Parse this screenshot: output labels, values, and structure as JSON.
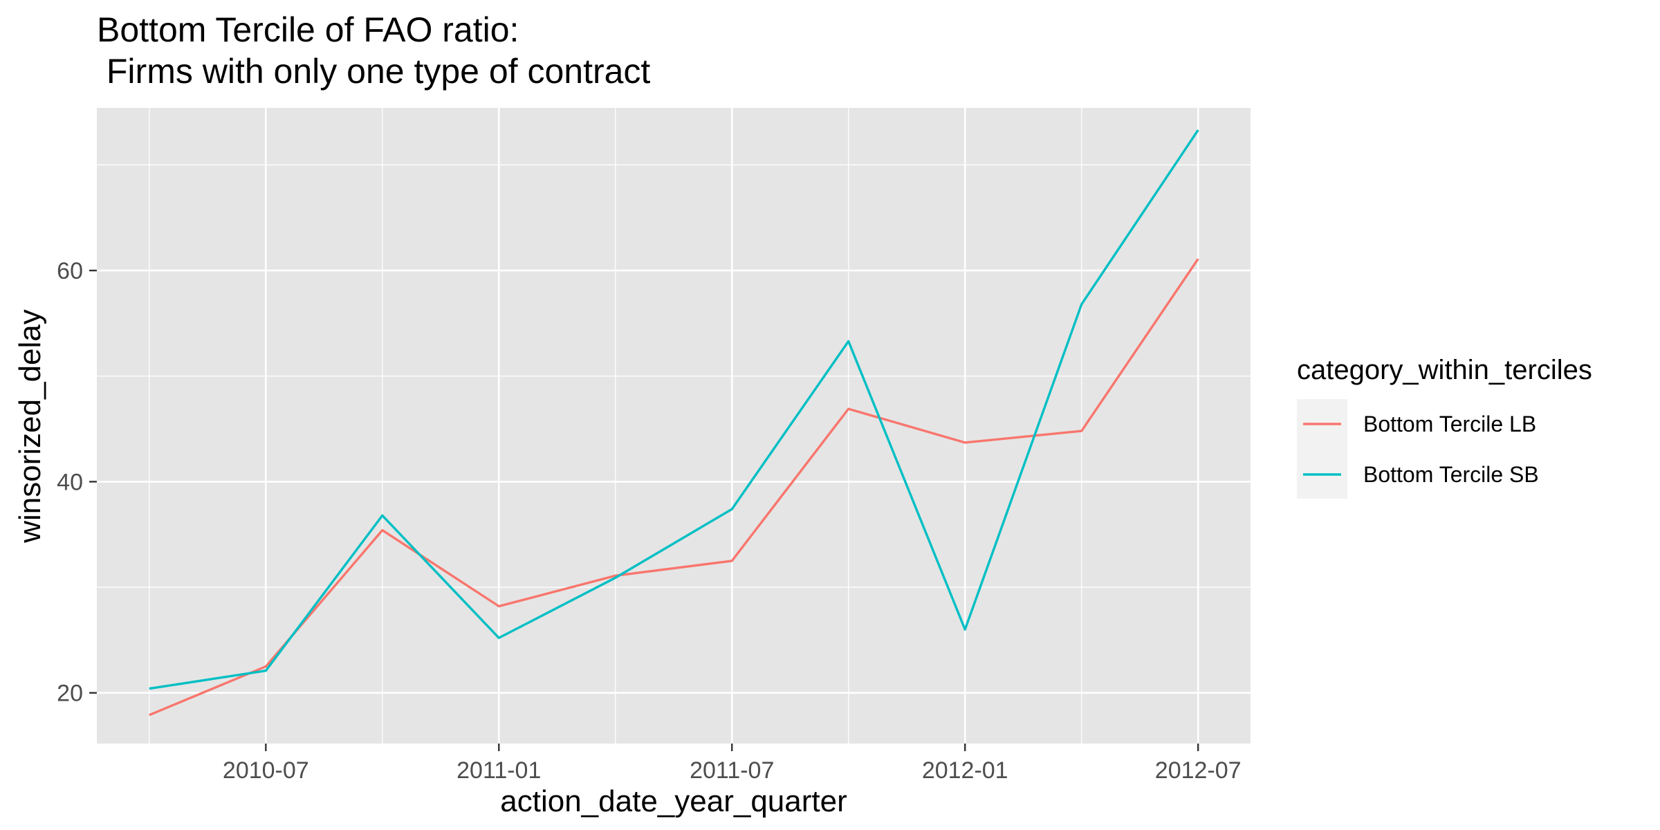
{
  "chart_data": {
    "type": "line",
    "title": [
      "Bottom Tercile of FAO ratio:",
      " Firms with only one type of contract"
    ],
    "xlabel": "action_date_year_quarter",
    "ylabel": "winsorized_delay",
    "x": [
      "2010-04",
      "2010-07",
      "2010-10",
      "2011-01",
      "2011-04",
      "2011-07",
      "2011-10",
      "2012-01",
      "2012-04",
      "2012-07"
    ],
    "x_ticks": [
      "2010-07",
      "2011-01",
      "2011-07",
      "2012-01",
      "2012-07"
    ],
    "y_ticks": [
      20,
      40,
      60
    ],
    "ylim": [
      15.2,
      75.4
    ],
    "grid": true,
    "legend": {
      "title": "category_within_terciles",
      "position": "right"
    },
    "series": [
      {
        "name": "Bottom Tercile LB",
        "color": "#F8766D",
        "values": [
          17.9,
          22.5,
          35.4,
          28.2,
          31.1,
          32.5,
          46.9,
          43.7,
          44.8,
          61.1
        ]
      },
      {
        "name": "Bottom Tercile SB",
        "color": "#00BFC4",
        "values": [
          20.4,
          22.1,
          36.8,
          25.2,
          30.9,
          37.4,
          53.3,
          26.0,
          56.8,
          73.3
        ]
      }
    ]
  }
}
